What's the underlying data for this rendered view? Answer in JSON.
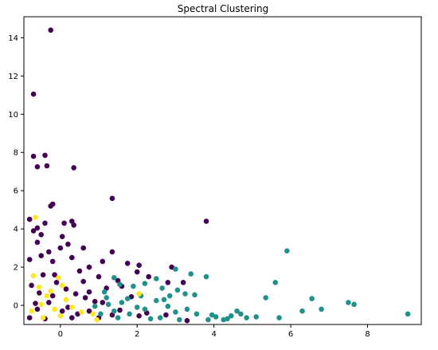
{
  "chart_data": {
    "type": "scatter",
    "title": "Spectral Clustering",
    "xlabel": "",
    "ylabel": "",
    "xlim": [
      -0.95,
      9.4
    ],
    "ylim": [
      -1.0,
      15.1
    ],
    "xticks": [
      0,
      2,
      4,
      6,
      8
    ],
    "yticks": [
      0,
      2,
      4,
      6,
      8,
      10,
      12,
      14
    ],
    "grid": false,
    "legend": "none",
    "series": [
      {
        "cluster": 0,
        "color": "#440154",
        "points": [
          [
            -0.25,
            14.4
          ],
          [
            -0.7,
            11.05
          ],
          [
            -0.7,
            7.8
          ],
          [
            -0.4,
            7.85
          ],
          [
            -0.6,
            7.25
          ],
          [
            -0.35,
            7.3
          ],
          [
            0.35,
            7.2
          ],
          [
            -0.2,
            5.3
          ],
          [
            -0.25,
            5.2
          ],
          [
            1.35,
            5.6
          ],
          [
            -0.8,
            4.5
          ],
          [
            -0.4,
            4.3
          ],
          [
            0.1,
            4.3
          ],
          [
            0.3,
            4.4
          ],
          [
            0.35,
            4.2
          ],
          [
            3.8,
            4.4
          ],
          [
            -0.7,
            3.9
          ],
          [
            -0.5,
            3.7
          ],
          [
            -0.6,
            4.05
          ],
          [
            0.05,
            3.6
          ],
          [
            0.2,
            3.2
          ],
          [
            -0.6,
            3.3
          ],
          [
            -0.3,
            2.8
          ],
          [
            0.0,
            3.0
          ],
          [
            0.6,
            3.0
          ],
          [
            1.35,
            2.8
          ],
          [
            1.1,
            2.3
          ],
          [
            2.05,
            2.1
          ],
          [
            -0.8,
            2.4
          ],
          [
            -0.5,
            2.6
          ],
          [
            -0.2,
            2.3
          ],
          [
            0.3,
            2.5
          ],
          [
            0.75,
            2.0
          ],
          [
            1.75,
            2.2
          ],
          [
            2.8,
            1.2
          ],
          [
            1.5,
            1.3
          ],
          [
            0.5,
            1.8
          ],
          [
            -0.15,
            1.6
          ],
          [
            1.0,
            1.5
          ],
          [
            2.3,
            1.5
          ],
          [
            2.0,
            1.75
          ],
          [
            2.9,
            2.0
          ],
          [
            3.2,
            1.2
          ],
          [
            1.6,
            1.0
          ],
          [
            1.2,
            0.9
          ],
          [
            0.4,
            0.6
          ],
          [
            0.9,
            0.2
          ],
          [
            2.25,
            -0.4
          ],
          [
            3.3,
            -0.8
          ],
          [
            2.05,
            -0.55
          ],
          [
            1.35,
            -0.5
          ],
          [
            0.75,
            -0.3
          ],
          [
            0.3,
            -0.65
          ],
          [
            0.05,
            -0.3
          ],
          [
            -0.4,
            -0.7
          ],
          [
            -0.8,
            -0.65
          ],
          [
            -0.6,
            -0.2
          ],
          [
            -0.3,
            0.15
          ],
          [
            -0.55,
            0.65
          ],
          [
            -0.75,
            1.05
          ],
          [
            -0.1,
            1.2
          ],
          [
            0.15,
            0.85
          ],
          [
            0.6,
            1.25
          ],
          [
            -0.2,
            0.5
          ],
          [
            0.65,
            0.4
          ],
          [
            1.1,
            0.15
          ],
          [
            1.55,
            -0.25
          ],
          [
            1.85,
            0.45
          ],
          [
            2.75,
            -0.5
          ],
          [
            0.2,
            -0.1
          ],
          [
            -0.45,
            1.6
          ],
          [
            -0.65,
            0.1
          ],
          [
            0.45,
            -0.45
          ],
          [
            1.0,
            -0.65
          ],
          [
            0.75,
            0.7
          ]
        ]
      },
      {
        "cluster": 1,
        "color": "#21918c",
        "points": [
          [
            5.9,
            2.85
          ],
          [
            3.0,
            1.9
          ],
          [
            3.8,
            1.5
          ],
          [
            5.6,
            1.2
          ],
          [
            3.4,
            1.65
          ],
          [
            2.5,
            1.4
          ],
          [
            2.2,
            1.15
          ],
          [
            1.9,
            1.0
          ],
          [
            1.4,
            1.45
          ],
          [
            1.55,
            1.1
          ],
          [
            1.15,
            0.7
          ],
          [
            2.65,
            0.9
          ],
          [
            3.05,
            0.8
          ],
          [
            2.85,
            0.5
          ],
          [
            3.5,
            0.55
          ],
          [
            6.55,
            0.35
          ],
          [
            5.35,
            0.4
          ],
          [
            7.5,
            0.15
          ],
          [
            7.65,
            0.05
          ],
          [
            6.8,
            -0.2
          ],
          [
            9.05,
            -0.45
          ],
          [
            6.3,
            -0.3
          ],
          [
            5.7,
            -0.65
          ],
          [
            5.1,
            -0.6
          ],
          [
            4.85,
            -0.65
          ],
          [
            4.6,
            -0.3
          ],
          [
            4.35,
            -0.7
          ],
          [
            3.95,
            -0.5
          ],
          [
            3.55,
            -0.45
          ],
          [
            3.3,
            -0.2
          ],
          [
            3.0,
            -0.35
          ],
          [
            2.8,
            -0.05
          ],
          [
            2.5,
            0.25
          ],
          [
            2.2,
            -0.2
          ],
          [
            2.0,
            -0.1
          ],
          [
            1.8,
            -0.45
          ],
          [
            1.6,
            0.15
          ],
          [
            1.4,
            -0.3
          ],
          [
            1.25,
            0.05
          ],
          [
            1.05,
            -0.45
          ],
          [
            0.9,
            -0.05
          ],
          [
            1.5,
            -0.65
          ],
          [
            2.35,
            -0.7
          ],
          [
            2.7,
            0.3
          ],
          [
            3.25,
            0.6
          ],
          [
            4.05,
            -0.6
          ],
          [
            4.25,
            -0.75
          ],
          [
            4.45,
            -0.55
          ],
          [
            4.7,
            -0.45
          ],
          [
            2.1,
            0.5
          ],
          [
            1.75,
            0.35
          ],
          [
            3.85,
            -0.75
          ],
          [
            3.1,
            -0.75
          ],
          [
            1.2,
            0.4
          ],
          [
            2.6,
            -0.65
          ]
        ]
      },
      {
        "cluster": 2,
        "color": "#fde725",
        "points": [
          [
            -0.65,
            4.6
          ],
          [
            -0.7,
            1.55
          ],
          [
            -0.05,
            1.45
          ],
          [
            0.05,
            1.05
          ],
          [
            -0.55,
            0.95
          ],
          [
            -0.35,
            0.5
          ],
          [
            0.15,
            0.3
          ],
          [
            -0.5,
            0.05
          ],
          [
            -0.15,
            -0.2
          ],
          [
            0.55,
            -0.35
          ],
          [
            -0.75,
            -0.3
          ],
          [
            -0.45,
            -0.65
          ],
          [
            0.0,
            -0.55
          ],
          [
            0.85,
            -0.45
          ],
          [
            0.95,
            -0.75
          ],
          [
            2.05,
            0.6
          ],
          [
            0.3,
            -0.1
          ],
          [
            -0.25,
            0.75
          ]
        ]
      }
    ]
  }
}
